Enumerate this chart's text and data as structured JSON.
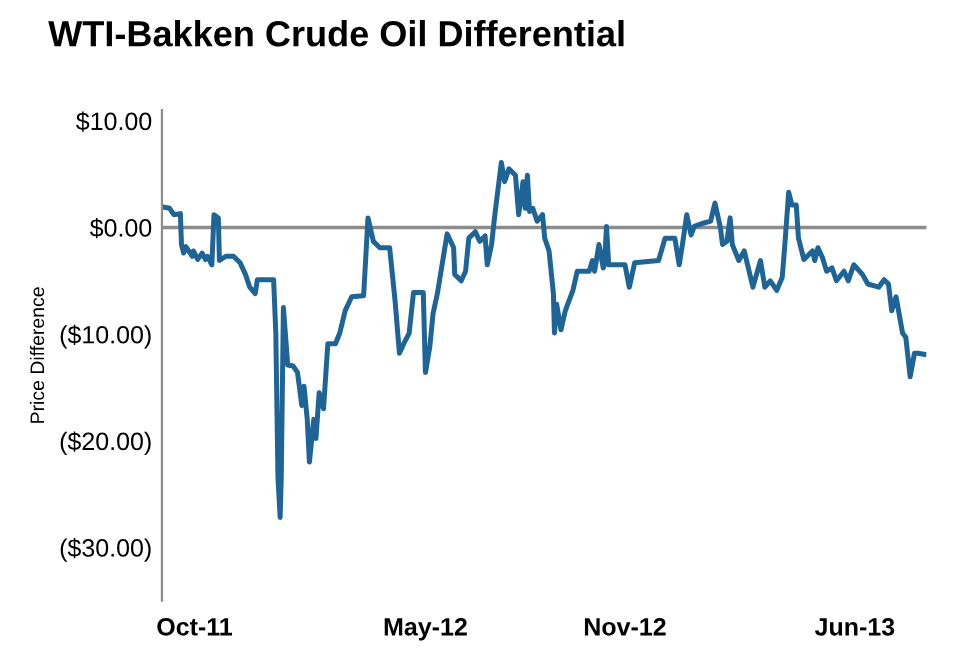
{
  "chart_data": {
    "type": "line",
    "title": "WTI-Bakken Crude Oil Differential",
    "ylabel": "Price Difference",
    "series": [
      {
        "color": "#1f6497",
        "x": [
          "2011-09-03",
          "2011-09-08",
          "2011-09-12",
          "2011-09-18",
          "2011-09-19",
          "2011-09-21",
          "2011-09-23",
          "2011-09-29",
          "2011-09-30",
          "2011-10-04",
          "2011-10-08",
          "2011-10-11",
          "2011-10-13",
          "2011-10-17",
          "2011-10-19",
          "2011-10-23",
          "2011-10-24",
          "2011-10-30",
          "2011-11-06",
          "2011-11-12",
          "2011-11-17",
          "2011-11-21",
          "2011-11-26",
          "2011-11-28",
          "2011-12-13",
          "2011-12-15",
          "2011-12-17",
          "2011-12-19",
          "2011-12-20",
          "2011-12-22",
          "2011-12-26",
          "2011-12-31",
          "2012-01-04",
          "2012-01-08",
          "2012-01-10",
          "2012-01-13",
          "2012-01-15",
          "2012-01-19",
          "2012-01-21",
          "2012-01-24",
          "2012-01-28",
          "2012-02-01",
          "2012-02-08",
          "2012-02-12",
          "2012-02-17",
          "2012-02-23",
          "2012-03-05",
          "2012-03-09",
          "2012-03-14",
          "2012-03-20",
          "2012-03-29",
          "2012-04-03",
          "2012-04-07",
          "2012-04-11",
          "2012-04-16",
          "2012-04-20",
          "2012-04-29",
          "2012-05-01",
          "2012-05-05",
          "2012-05-08",
          "2012-05-12",
          "2012-05-21",
          "2012-05-27",
          "2012-05-28",
          "2012-06-03",
          "2012-06-07",
          "2012-06-10",
          "2012-06-16",
          "2012-06-20",
          "2012-06-25",
          "2012-06-27",
          "2012-07-01",
          "2012-07-04",
          "2012-07-10",
          "2012-07-13",
          "2012-07-17",
          "2012-07-23",
          "2012-07-26",
          "2012-07-30",
          "2012-08-01",
          "2012-08-03",
          "2012-08-05",
          "2012-08-08",
          "2012-08-12",
          "2012-08-17",
          "2012-08-19",
          "2012-08-23",
          "2012-08-27",
          "2012-08-28",
          "2012-08-30",
          "2012-09-03",
          "2012-09-05",
          "2012-09-07",
          "2012-09-14",
          "2012-09-18",
          "2012-09-29",
          "2012-10-02",
          "2012-10-04",
          "2012-10-08",
          "2012-10-12",
          "2012-10-13",
          "2012-10-15",
          "2012-10-17",
          "2012-11-01",
          "2012-11-05",
          "2012-11-10",
          "2012-12-02",
          "2012-12-08",
          "2012-12-17",
          "2012-12-21",
          "2012-12-24",
          "2012-12-28",
          "2013-01-01",
          "2013-01-04",
          "2013-01-12",
          "2013-01-19",
          "2013-01-23",
          "2013-01-28",
          "2013-01-30",
          "2013-02-03",
          "2013-02-06",
          "2013-02-08",
          "2013-02-14",
          "2013-02-19",
          "2013-02-27",
          "2013-03-06",
          "2013-03-10",
          "2013-03-15",
          "2013-03-21",
          "2013-03-26",
          "2013-03-28",
          "2013-04-01",
          "2013-04-04",
          "2013-04-08",
          "2013-04-10",
          "2013-04-15",
          "2013-04-23",
          "2013-04-25",
          "2013-04-28",
          "2013-05-02",
          "2013-05-06",
          "2013-05-11",
          "2013-05-15",
          "2013-05-22",
          "2013-05-26",
          "2013-05-31",
          "2013-06-08",
          "2013-06-13",
          "2013-06-23",
          "2013-06-28",
          "2013-07-02",
          "2013-07-05",
          "2013-07-09",
          "2013-07-15",
          "2013-07-18",
          "2013-07-22",
          "2013-07-26",
          "2013-07-29",
          "2013-08-04"
        ],
        "values": [
          1.9,
          1.8,
          1.2,
          1.3,
          -1.6,
          -2.4,
          -1.8,
          -2.7,
          -2.2,
          -3.0,
          -2.4,
          -3.0,
          -2.7,
          -3.5,
          1.2,
          0.9,
          -3.1,
          -2.7,
          -2.7,
          -3.3,
          -4.4,
          -5.6,
          -6.2,
          -4.9,
          -4.9,
          -9.9,
          -23.5,
          -27.2,
          -23.5,
          -7.5,
          -12.9,
          -13.0,
          -13.6,
          -16.7,
          -14.9,
          -18.0,
          -22.0,
          -18.0,
          -19.8,
          -15.5,
          -17.0,
          -10.9,
          -10.9,
          -9.9,
          -7.8,
          -6.5,
          -6.4,
          0.9,
          -1.3,
          -1.9,
          -1.9,
          -6.9,
          -11.8,
          -10.9,
          -9.9,
          -6.1,
          -6.1,
          -13.6,
          -11.2,
          -8.1,
          -6.2,
          -0.6,
          -1.9,
          -4.4,
          -5.0,
          -4.1,
          -1.0,
          -0.4,
          -1.3,
          -0.8,
          -3.5,
          -1.6,
          1.2,
          6.1,
          4.3,
          5.5,
          4.9,
          1.2,
          4.3,
          1.8,
          4.9,
          1.5,
          1.8,
          0.6,
          1.2,
          -1.0,
          -2.2,
          -6.2,
          -9.9,
          -7.2,
          -9.6,
          -8.7,
          -7.8,
          -5.9,
          -4.1,
          -4.1,
          -3.1,
          -4.1,
          -1.6,
          -3.8,
          -3.5,
          0.1,
          -3.5,
          -3.5,
          -5.6,
          -3.3,
          -3.1,
          -1.0,
          -1.0,
          -3.5,
          -1.6,
          1.2,
          -0.7,
          0.1,
          0.4,
          0.6,
          2.3,
          0.0,
          -1.6,
          -1.3,
          0.9,
          -1.6,
          -3.1,
          -2.2,
          -5.6,
          -3.1,
          -5.6,
          -5.0,
          -5.9,
          -4.7,
          -2.2,
          3.3,
          2.1,
          2.1,
          -1.0,
          -3.0,
          -2.2,
          -3.1,
          -1.9,
          -2.8,
          -4.1,
          -3.8,
          -5.0,
          -4.1,
          -5.0,
          -3.5,
          -4.4,
          -5.3,
          -5.6,
          -4.9,
          -5.3,
          -7.8,
          -6.5,
          -9.9,
          -10.3,
          -14.0,
          -11.8,
          -11.8,
          -11.9
        ]
      }
    ],
    "xlim": [
      "2011-09-01",
      "2013-08-06"
    ],
    "xticks": [
      {
        "value": "2011-10-01",
        "label": "Oct-11"
      },
      {
        "value": "2012-05-01",
        "label": "May-12"
      },
      {
        "value": "2012-11-01",
        "label": "Nov-12"
      },
      {
        "value": "2013-06-01",
        "label": "Jun-13"
      }
    ],
    "ylim": [
      -35,
      11
    ],
    "yticks": [
      {
        "value": 10,
        "label": "$10.00"
      },
      {
        "value": 0,
        "label": "$0.00"
      },
      {
        "value": -10,
        "label": "($10.00)"
      },
      {
        "value": -20,
        "label": "($20.00)"
      },
      {
        "value": -30,
        "label": "($30.00)"
      }
    ],
    "ref_lines": [
      {
        "axis": "y",
        "value": 0,
        "color": "#8c8c8c"
      }
    ],
    "grid": false,
    "legend": false
  }
}
